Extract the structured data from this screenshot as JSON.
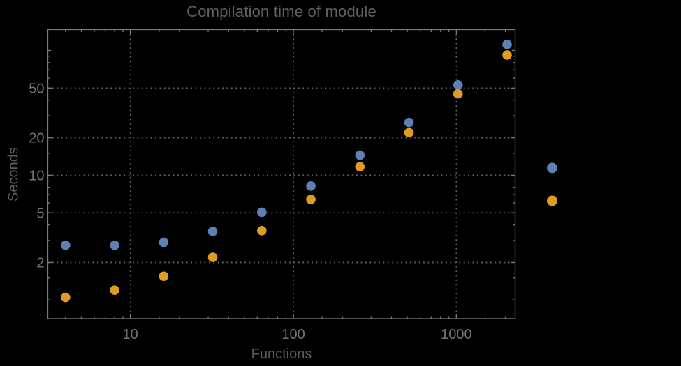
{
  "page": {
    "background": "#000000"
  },
  "chart_data": {
    "type": "scatter",
    "title": "Compilation time of module",
    "xlabel": "Functions",
    "ylabel": "Seconds",
    "x_scale": "log",
    "y_scale": "log",
    "xlim": [
      3.1,
      2300
    ],
    "ylim": [
      0.7,
      147
    ],
    "grid": "dotted lines at labeled ticks",
    "x": [
      4,
      8,
      16,
      32,
      64,
      128,
      256,
      512,
      1024,
      2048
    ],
    "series": [
      {
        "name": "blue",
        "color": "#5E81B5",
        "values": [
          2.75,
          2.75,
          2.9,
          3.55,
          5.05,
          8.2,
          14.5,
          26.5,
          53,
          112
        ]
      },
      {
        "name": "orange",
        "color": "#E19C24",
        "values": [
          1.05,
          1.2,
          1.55,
          2.2,
          3.6,
          6.4,
          11.7,
          22,
          45,
          92
        ]
      }
    ],
    "x_ticks": {
      "major": [
        10,
        100,
        1000
      ],
      "labels": [
        "10",
        "100",
        "1000"
      ],
      "minor": [
        4,
        5,
        6,
        7,
        8,
        9,
        15,
        20,
        30,
        40,
        50,
        60,
        70,
        80,
        90,
        150,
        200,
        300,
        400,
        500,
        600,
        700,
        800,
        900,
        1500,
        2000
      ]
    },
    "y_ticks": {
      "major": [
        2,
        5,
        10,
        20,
        50
      ],
      "labels": [
        "2",
        "5",
        "10",
        "20",
        "50"
      ],
      "mid": [
        1,
        100
      ],
      "minor": [
        1.5,
        3,
        4,
        6,
        7,
        8,
        9,
        15,
        30,
        40,
        60,
        70,
        80,
        90
      ]
    },
    "gridlines": {
      "x": [
        10,
        100,
        1000
      ],
      "y": [
        2,
        5,
        10,
        20,
        50
      ]
    },
    "legend": {
      "labels_visible": false,
      "markers": [
        {
          "series": "blue",
          "color": "#5E81B5"
        },
        {
          "series": "orange",
          "color": "#E19C24"
        }
      ]
    },
    "colors": {
      "background": "#000000",
      "frame": "#7a7a7a",
      "tick_label": "#747474",
      "title": "#616161",
      "axis_label": "#5c5c5c",
      "gridline": "#666666"
    }
  }
}
